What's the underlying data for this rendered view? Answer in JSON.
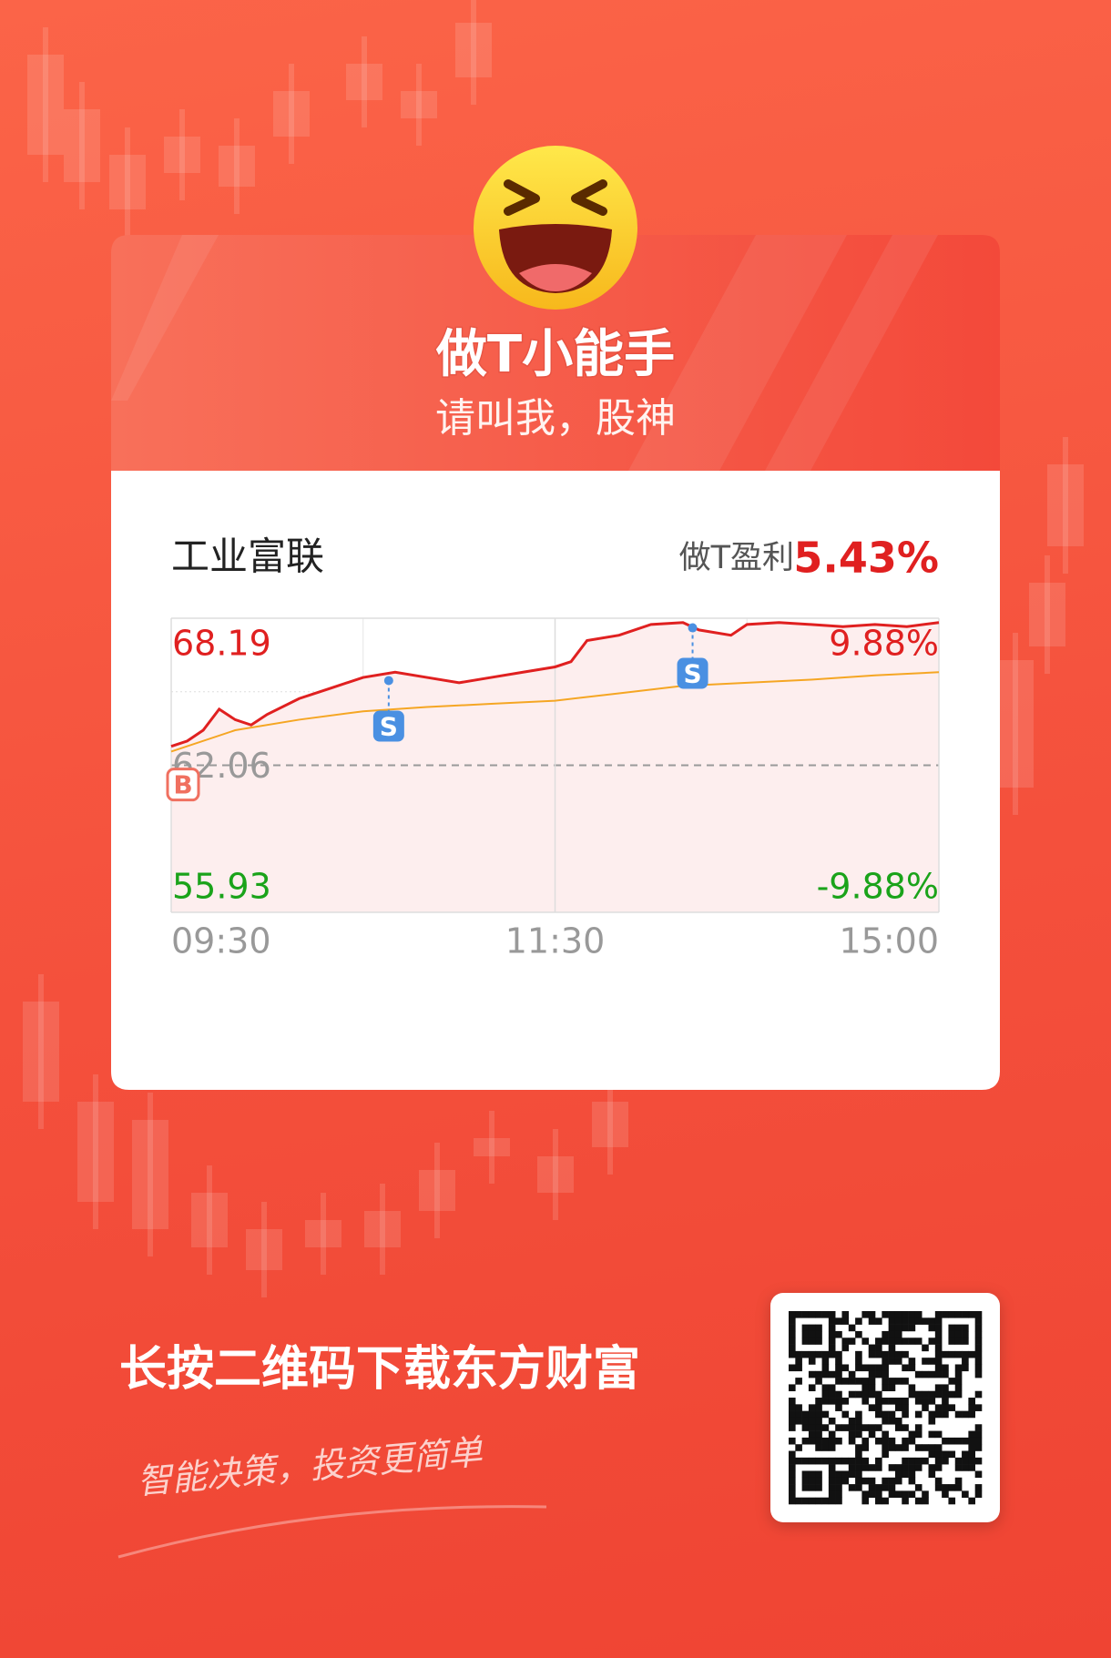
{
  "header": {
    "title": "做T小能手",
    "subtitle": "请叫我，股神"
  },
  "card": {
    "stock_name": "工业富联",
    "profit_label": "做T盈利",
    "profit_value": "5.43%"
  },
  "chart_data": {
    "type": "line",
    "x": [
      0,
      5,
      10,
      15,
      20,
      25,
      30,
      40,
      50,
      60,
      70,
      80,
      90,
      100,
      110,
      120,
      125,
      130,
      140,
      150,
      160,
      165,
      175,
      180,
      190,
      200,
      210,
      220,
      230,
      240
    ],
    "series": [
      {
        "color": "#e02020",
        "values": [
          62.85,
          63.07,
          63.52,
          64.4,
          63.96,
          63.74,
          64.18,
          64.84,
          65.28,
          65.72,
          65.94,
          65.72,
          65.5,
          65.72,
          65.94,
          66.16,
          66.38,
          67.26,
          67.48,
          67.93,
          68.01,
          67.7,
          67.48,
          67.93,
          68.01,
          67.93,
          67.84,
          67.93,
          67.84,
          68.01
        ]
      },
      {
        "color": "#f5a623",
        "x": [
          0,
          20,
          40,
          60,
          80,
          100,
          120,
          140,
          160,
          180,
          200,
          220,
          240
        ],
        "values": [
          62.63,
          63.52,
          63.96,
          64.31,
          64.49,
          64.62,
          64.75,
          65.06,
          65.37,
          65.5,
          65.63,
          65.81,
          65.94
        ]
      }
    ],
    "xlim": [
      0,
      240
    ],
    "xticks": [
      {
        "value": 0,
        "label": "09:30"
      },
      {
        "value": 120,
        "label": "11:30"
      },
      {
        "value": 240,
        "label": "15:00"
      }
    ],
    "ylim": [
      55.93,
      68.19
    ],
    "yticks": [
      68.19,
      62.06,
      55.93
    ],
    "y2lim": [
      -9.88,
      9.88
    ],
    "y2ticks": [
      {
        "value": 9.88,
        "label": "9.88%"
      },
      {
        "value": -9.88,
        "label": "-9.88%"
      }
    ],
    "trades": [
      {
        "label": "B",
        "x": 0,
        "price": 62.85
      },
      {
        "label": "S",
        "x": 68,
        "price": 65.59
      },
      {
        "label": "S",
        "x": 163,
        "price": 67.79
      }
    ]
  },
  "footer": {
    "cta": "长按二维码下载东方财富",
    "slogan": "智能决策，投资更简单"
  }
}
